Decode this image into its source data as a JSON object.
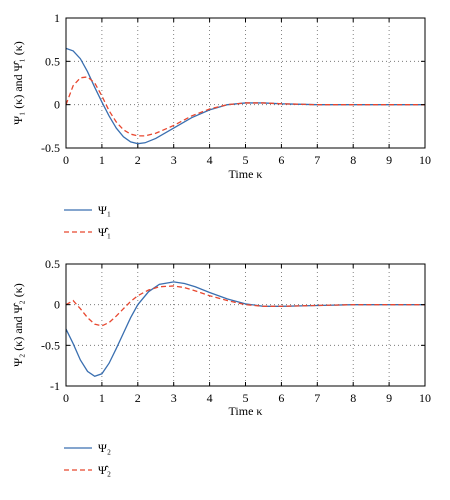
{
  "chart_data": [
    {
      "type": "line",
      "xlabel": "Time κ",
      "ylabel": "Ψ₁ (κ) and Ψ̂₁ (κ)",
      "xlim": [
        0,
        10
      ],
      "ylim": [
        -0.5,
        1
      ],
      "xticks": [
        "0",
        "1",
        "2",
        "3",
        "4",
        "5",
        "6",
        "7",
        "8",
        "9",
        "10"
      ],
      "yticks": [
        "-0.5",
        "0",
        "0.5",
        "1"
      ],
      "grid": true,
      "legend_position": "below plot",
      "series": [
        {
          "name": "Ψ₁",
          "color": "#3a6fb0",
          "style": "solid",
          "x": [
            0,
            0.2,
            0.4,
            0.6,
            0.8,
            1.0,
            1.2,
            1.4,
            1.6,
            1.8,
            2.0,
            2.2,
            2.5,
            3.0,
            3.5,
            4.0,
            4.5,
            5.0,
            5.5,
            6.0,
            7.0,
            8.0,
            9.0,
            10.0
          ],
          "y": [
            0.65,
            0.62,
            0.53,
            0.38,
            0.2,
            0.03,
            -0.13,
            -0.27,
            -0.37,
            -0.43,
            -0.45,
            -0.44,
            -0.39,
            -0.27,
            -0.15,
            -0.06,
            0.0,
            0.02,
            0.02,
            0.01,
            0.0,
            0.0,
            0.0,
            0.0
          ]
        },
        {
          "name": "Ψ̂₁",
          "color": "#e8472f",
          "style": "dashed",
          "x": [
            0,
            0.2,
            0.4,
            0.6,
            0.8,
            1.0,
            1.2,
            1.4,
            1.6,
            1.8,
            2.0,
            2.2,
            2.5,
            3.0,
            3.5,
            4.0,
            4.5,
            5.0,
            5.5,
            6.0,
            7.0,
            8.0,
            9.0,
            10.0
          ],
          "y": [
            0.0,
            0.22,
            0.31,
            0.32,
            0.25,
            0.1,
            -0.07,
            -0.2,
            -0.29,
            -0.34,
            -0.36,
            -0.36,
            -0.33,
            -0.24,
            -0.13,
            -0.05,
            0.0,
            0.02,
            0.02,
            0.01,
            0.0,
            0.0,
            0.0,
            0.0
          ]
        }
      ]
    },
    {
      "type": "line",
      "xlabel": "Time κ",
      "ylabel": "Ψ₂ (κ) and Ψ̂₂ (κ)",
      "xlim": [
        0,
        10
      ],
      "ylim": [
        -1,
        0.5
      ],
      "xticks": [
        "0",
        "1",
        "2",
        "3",
        "4",
        "5",
        "6",
        "7",
        "8",
        "9",
        "10"
      ],
      "yticks": [
        "-1",
        "-0.5",
        "0",
        "0.5"
      ],
      "grid": true,
      "legend_position": "below plot",
      "series": [
        {
          "name": "Ψ₂",
          "color": "#3a6fb0",
          "style": "solid",
          "x": [
            0,
            0.2,
            0.4,
            0.6,
            0.8,
            1.0,
            1.2,
            1.4,
            1.6,
            1.8,
            2.0,
            2.3,
            2.6,
            3.0,
            3.3,
            3.6,
            4.0,
            4.5,
            5.0,
            5.5,
            6.0,
            7.0,
            8.0,
            9.0,
            10.0
          ],
          "y": [
            -0.3,
            -0.48,
            -0.68,
            -0.82,
            -0.88,
            -0.85,
            -0.72,
            -0.54,
            -0.35,
            -0.16,
            0.0,
            0.16,
            0.25,
            0.28,
            0.26,
            0.22,
            0.15,
            0.07,
            0.01,
            -0.02,
            -0.02,
            -0.01,
            0.0,
            0.0,
            0.0
          ]
        },
        {
          "name": "Ψ̂₂",
          "color": "#e8472f",
          "style": "dashed",
          "x": [
            0,
            0.2,
            0.4,
            0.6,
            0.8,
            1.0,
            1.2,
            1.4,
            1.6,
            1.8,
            2.0,
            2.3,
            2.6,
            3.0,
            3.3,
            3.6,
            4.0,
            4.5,
            5.0,
            5.5,
            6.0,
            7.0,
            8.0,
            9.0,
            10.0
          ],
          "y": [
            0.0,
            0.05,
            -0.05,
            -0.16,
            -0.24,
            -0.26,
            -0.22,
            -0.14,
            -0.05,
            0.04,
            0.11,
            0.18,
            0.22,
            0.23,
            0.21,
            0.17,
            0.11,
            0.05,
            0.0,
            -0.02,
            -0.02,
            -0.01,
            0.0,
            0.0,
            0.0
          ]
        }
      ]
    }
  ],
  "legends": [
    [
      {
        "label": "Ψ",
        "sub": "1",
        "hat": false
      },
      {
        "label": "Ψ̂",
        "sub": "1",
        "hat": true
      }
    ],
    [
      {
        "label": "Ψ",
        "sub": "2",
        "hat": false
      },
      {
        "label": "Ψ̂",
        "sub": "2",
        "hat": true
      }
    ]
  ]
}
